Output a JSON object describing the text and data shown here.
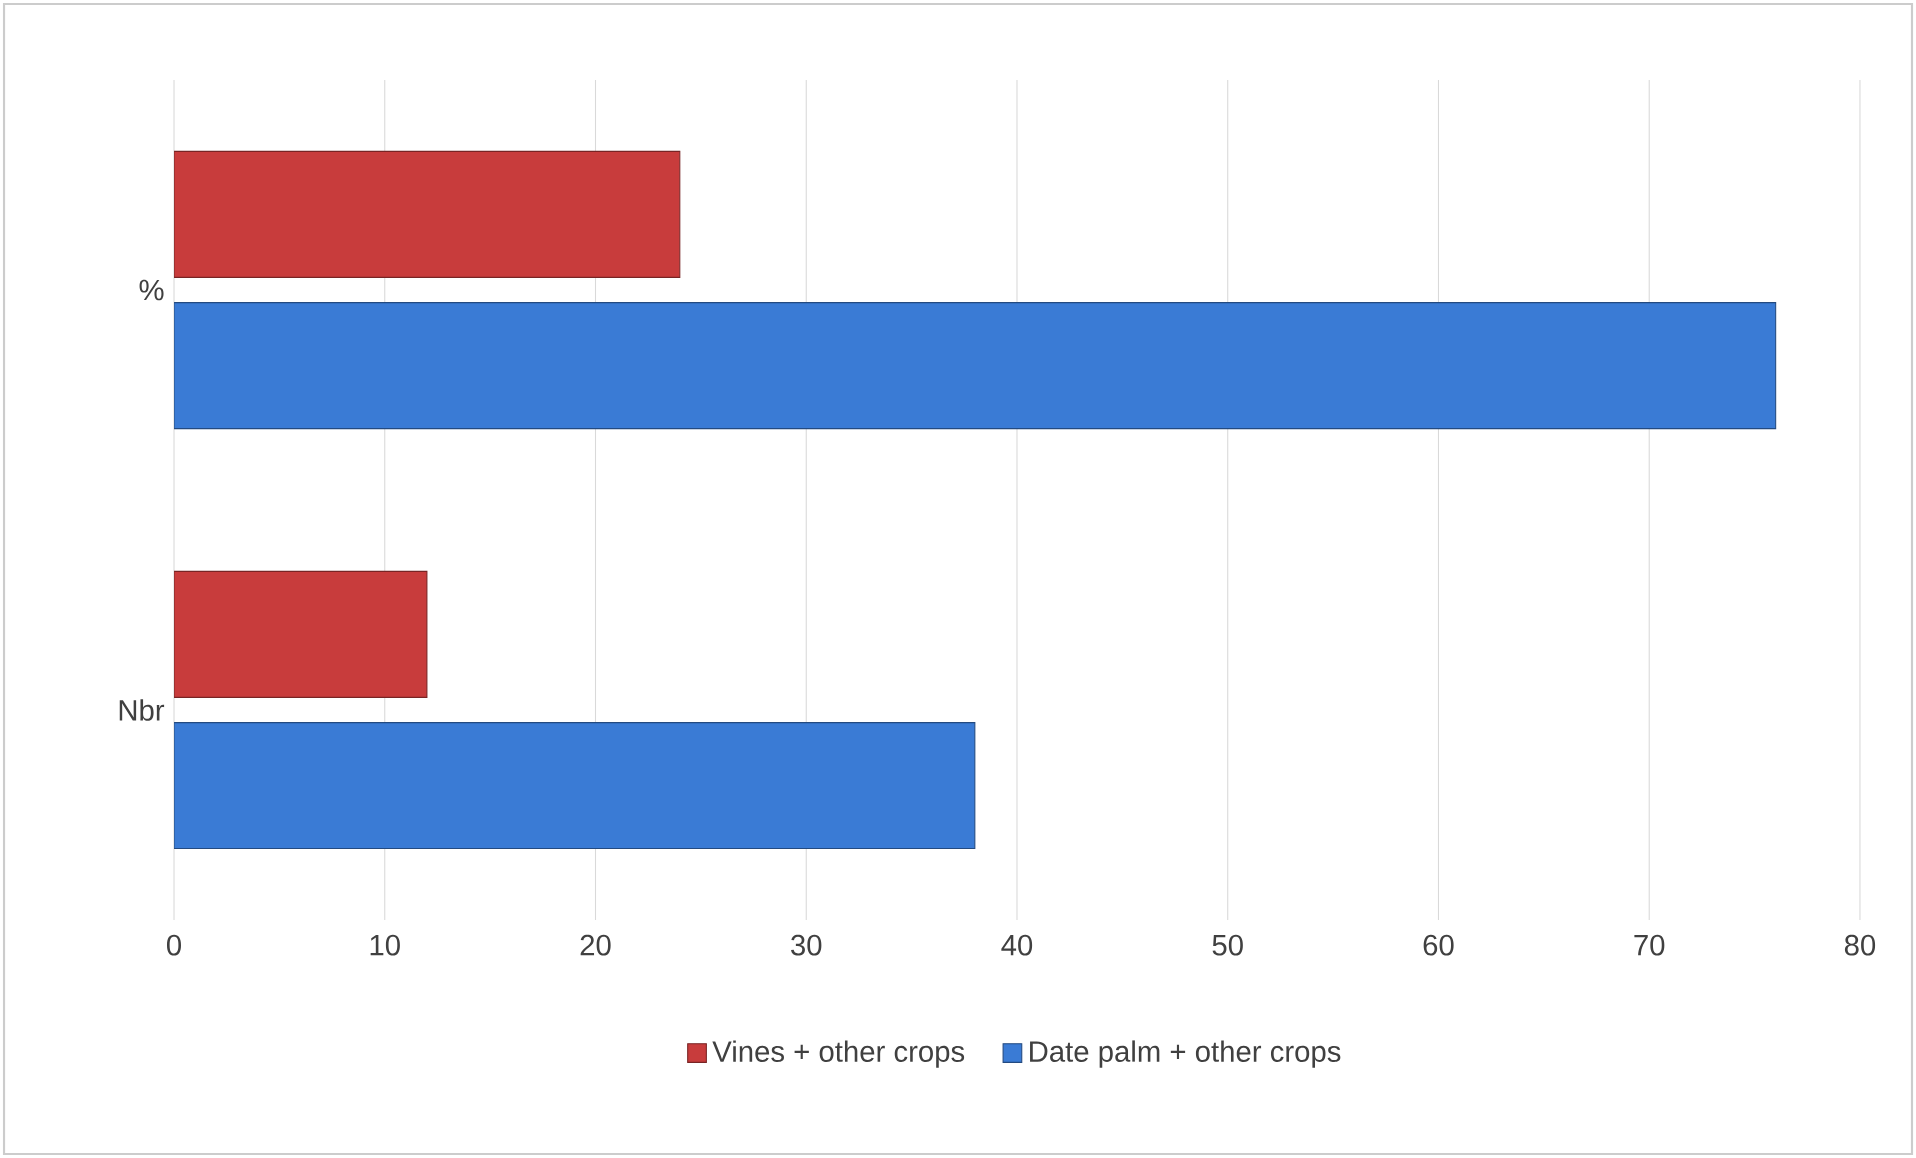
{
  "chart_data": {
    "type": "bar",
    "orientation": "horizontal",
    "categories": [
      "%",
      "Nbr"
    ],
    "series": [
      {
        "name": "Vines + other crops",
        "color": "#c83c3c",
        "values": [
          24,
          12
        ]
      },
      {
        "name": "Date palm + other crops",
        "color": "#3a7bd5",
        "values": [
          76,
          38
        ]
      }
    ],
    "xlim": [
      0,
      80
    ],
    "xticks": [
      0,
      10,
      20,
      30,
      40,
      50,
      60,
      70,
      80
    ],
    "grid": "x",
    "legend": "bottom"
  }
}
